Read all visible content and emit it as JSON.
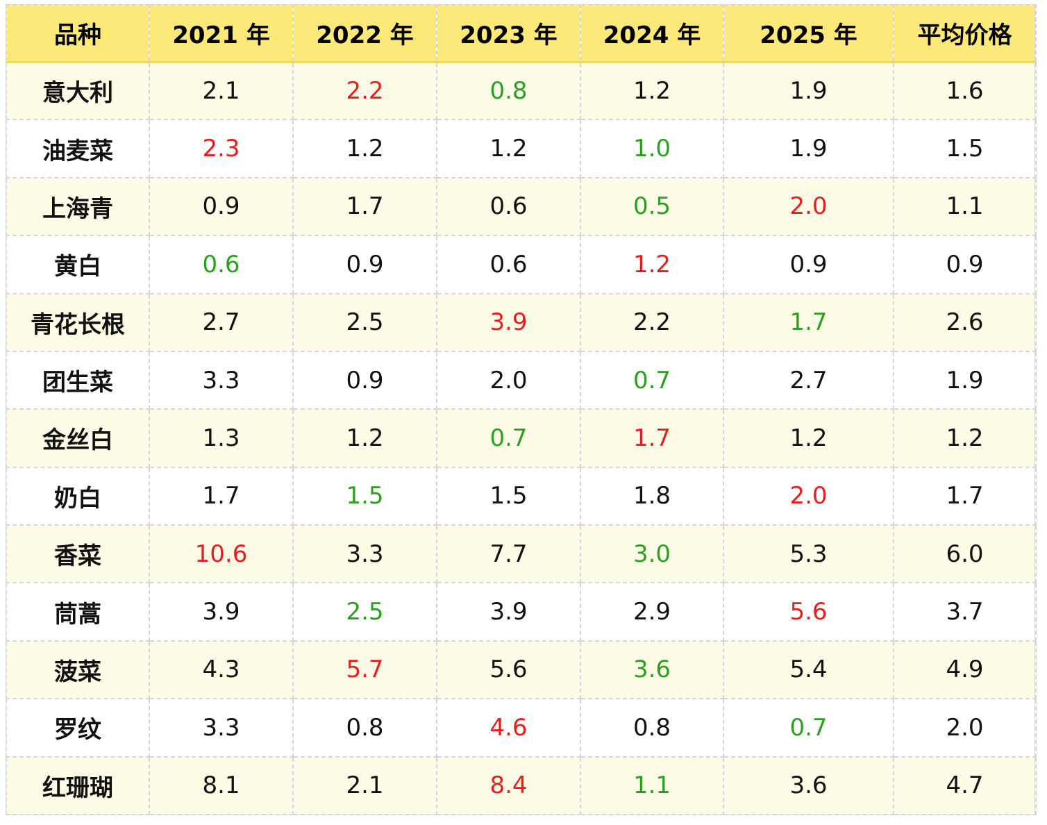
{
  "chart_data": {
    "type": "table",
    "columns": [
      "品种",
      "2021 年",
      "2022 年",
      "2023 年",
      "2024 年",
      "2025 年",
      "平均价格"
    ],
    "rows": [
      {
        "variety": "意大利",
        "values": [
          "2.1",
          "2.2",
          "0.8",
          "1.2",
          "1.9"
        ],
        "avg": "1.6",
        "high_index": 1,
        "low_index": 2
      },
      {
        "variety": "油麦菜",
        "values": [
          "2.3",
          "1.2",
          "1.2",
          "1.0",
          "1.9"
        ],
        "avg": "1.5",
        "high_index": 0,
        "low_index": 3
      },
      {
        "variety": "上海青",
        "values": [
          "0.9",
          "1.7",
          "0.6",
          "0.5",
          "2.0"
        ],
        "avg": "1.1",
        "high_index": 4,
        "low_index": 3
      },
      {
        "variety": "黄白",
        "values": [
          "0.6",
          "0.9",
          "0.6",
          "1.2",
          "0.9"
        ],
        "avg": "0.9",
        "high_index": 3,
        "low_index": 0
      },
      {
        "variety": "青花长根",
        "values": [
          "2.7",
          "2.5",
          "3.9",
          "2.2",
          "1.7"
        ],
        "avg": "2.6",
        "high_index": 2,
        "low_index": 4
      },
      {
        "variety": "团生菜",
        "values": [
          "3.3",
          "0.9",
          "2.0",
          "0.7",
          "2.7"
        ],
        "avg": "1.9",
        "high_index": -1,
        "low_index": 3
      },
      {
        "variety": "金丝白",
        "values": [
          "1.3",
          "1.2",
          "0.7",
          "1.7",
          "1.2"
        ],
        "avg": "1.2",
        "high_index": 3,
        "low_index": 2
      },
      {
        "variety": "奶白",
        "values": [
          "1.7",
          "1.5",
          "1.5",
          "1.8",
          "2.0"
        ],
        "avg": "1.7",
        "high_index": 4,
        "low_index": 1
      },
      {
        "variety": "香菜",
        "values": [
          "10.6",
          "3.3",
          "7.7",
          "3.0",
          "5.3"
        ],
        "avg": "6.0",
        "high_index": 0,
        "low_index": 3
      },
      {
        "variety": "茼蒿",
        "values": [
          "3.9",
          "2.5",
          "3.9",
          "2.9",
          "5.6"
        ],
        "avg": "3.7",
        "high_index": 4,
        "low_index": 1
      },
      {
        "variety": "菠菜",
        "values": [
          "4.3",
          "5.7",
          "5.6",
          "3.6",
          "5.4"
        ],
        "avg": "4.9",
        "high_index": 1,
        "low_index": 3
      },
      {
        "variety": "罗纹",
        "values": [
          "3.3",
          "0.8",
          "4.6",
          "0.8",
          "0.7"
        ],
        "avg": "2.0",
        "high_index": 2,
        "low_index": 4
      },
      {
        "variety": "红珊瑚",
        "values": [
          "8.1",
          "2.1",
          "8.4",
          "1.1",
          "3.6"
        ],
        "avg": "4.7",
        "high_index": 2,
        "low_index": 3
      }
    ],
    "colors": {
      "header_bg": "#fce97a",
      "row_tint": "#fefce6",
      "high": "#ea1c1c",
      "low": "#2b9f20"
    }
  }
}
